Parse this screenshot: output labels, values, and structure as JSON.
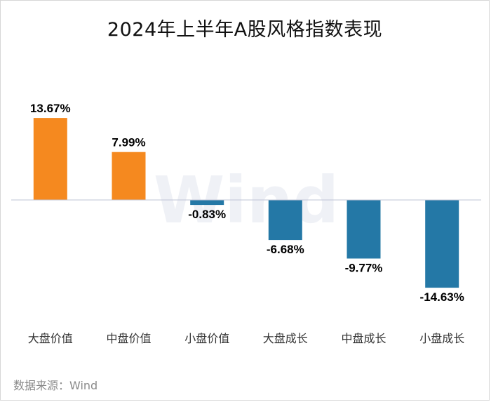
{
  "chart_data": {
    "type": "bar",
    "title": "2024年上半年A股风格指数表现",
    "categories": [
      "大盘价值",
      "中盘价值",
      "小盘价值",
      "大盘成长",
      "中盘成长",
      "小盘成长"
    ],
    "values": [
      13.67,
      7.99,
      -0.83,
      -6.68,
      -9.77,
      -14.63
    ],
    "data_labels": [
      "13.67%",
      "7.99%",
      "-0.83%",
      "-6.68%",
      "-9.77%",
      "-14.63%"
    ],
    "unit": "%",
    "xlabel": "",
    "ylabel": "",
    "ylim": [
      -16,
      16
    ],
    "grid": false,
    "legend": "none",
    "colors": {
      "positive": "#F5891F",
      "negative": "#2478A6",
      "baseline": "#BFC4D6",
      "watermark": "#E9ECF3"
    },
    "watermark": "Wind"
  },
  "source": "数据来源：Wind"
}
